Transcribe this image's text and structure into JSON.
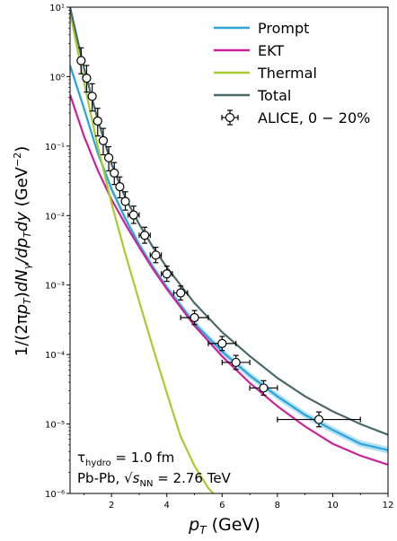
{
  "chart_data": {
    "type": "line",
    "xlabel": "p_T (GeV)",
    "ylabel": "1/(2πp_T)dN_γ/dp_Tdy (GeV⁻²)",
    "xlim": [
      0.5,
      12
    ],
    "ylim": [
      1e-06,
      10
    ],
    "log_y": true,
    "x_ticks": [
      2,
      4,
      6,
      8,
      10,
      12
    ],
    "y_ticks": [
      {
        "value": 1e-06,
        "label": "10⁻⁶"
      },
      {
        "value": 1e-05,
        "label": "10⁻⁵"
      },
      {
        "value": 0.0001,
        "label": "10⁻⁴"
      },
      {
        "value": 0.001,
        "label": "10⁻³"
      },
      {
        "value": 0.01,
        "label": "10⁻²"
      },
      {
        "value": 0.1,
        "label": "10⁻¹"
      },
      {
        "value": 1,
        "label": "10⁰"
      },
      {
        "value": 10,
        "label": "10¹"
      }
    ],
    "grid": false,
    "legend_position": "top-right",
    "series": [
      {
        "name": "Prompt",
        "color": "#2aa6d9",
        "band": true,
        "x": [
          0.5,
          1.0,
          1.5,
          2.0,
          2.5,
          3.0,
          3.5,
          4.0,
          5.0,
          6.0,
          7.0,
          8.0,
          9.0,
          10.0,
          11.0,
          12.0
        ],
        "y": [
          1.45,
          0.35,
          0.08,
          0.024,
          0.009,
          0.0038,
          0.0018,
          0.00092,
          0.00028,
          0.00011,
          5e-05,
          2.5e-05,
          1.35e-05,
          8.2e-06,
          5.2e-06,
          4.2e-06
        ]
      },
      {
        "name": "EKT",
        "color": "#cc2299",
        "x": [
          0.5,
          1.0,
          1.5,
          2.0,
          2.5,
          3.0,
          3.5,
          4.0,
          5.0,
          6.0,
          7.0,
          8.0,
          9.0,
          10.0,
          11.0,
          12.0
        ],
        "y": [
          0.55,
          0.14,
          0.045,
          0.017,
          0.0075,
          0.0035,
          0.0017,
          0.00088,
          0.00026,
          9.4e-05,
          3.9e-05,
          1.8e-05,
          9.2e-06,
          5.2e-06,
          3.5e-06,
          2.6e-06
        ]
      },
      {
        "name": "Thermal",
        "color": "#a8cc30",
        "x": [
          0.5,
          1.0,
          1.5,
          2.0,
          2.5,
          3.0,
          3.5,
          4.0,
          4.5,
          5.0,
          5.5,
          6.0,
          6.3
        ],
        "y": [
          8.5,
          0.85,
          0.1,
          0.015,
          0.0028,
          0.00058,
          0.000125,
          2.8e-05,
          6.6e-06,
          2.5e-06,
          1.2e-06,
          7.2e-07,
          5e-07
        ]
      },
      {
        "name": "Total",
        "color": "#4a6a6a",
        "x": [
          0.5,
          1.0,
          1.5,
          2.0,
          2.5,
          3.0,
          3.5,
          4.0,
          5.0,
          6.0,
          7.0,
          8.0,
          9.0,
          10.0,
          11.0,
          12.0
        ],
        "y": [
          10,
          1.35,
          0.24,
          0.055,
          0.018,
          0.0075,
          0.0035,
          0.0018,
          0.00055,
          0.00021,
          9.5e-05,
          4.6e-05,
          2.5e-05,
          1.52e-05,
          1e-05,
          7e-06
        ]
      }
    ],
    "data_series": {
      "name": "ALICE, 0 − 20%",
      "points": [
        {
          "x": 0.9,
          "y": 1.7,
          "yerr_lo": 0.6,
          "yerr_hi": 0.9,
          "xerr": 0.1
        },
        {
          "x": 1.1,
          "y": 0.95,
          "yerr_lo": 0.35,
          "yerr_hi": 0.5,
          "xerr": 0.1
        },
        {
          "x": 1.3,
          "y": 0.52,
          "yerr_lo": 0.2,
          "yerr_hi": 0.27,
          "xerr": 0.1
        },
        {
          "x": 1.5,
          "y": 0.23,
          "yerr_lo": 0.09,
          "yerr_hi": 0.12,
          "xerr": 0.1
        },
        {
          "x": 1.7,
          "y": 0.12,
          "yerr_lo": 0.045,
          "yerr_hi": 0.06,
          "xerr": 0.1
        },
        {
          "x": 1.9,
          "y": 0.068,
          "yerr_lo": 0.024,
          "yerr_hi": 0.03,
          "xerr": 0.1
        },
        {
          "x": 2.1,
          "y": 0.041,
          "yerr_lo": 0.013,
          "yerr_hi": 0.017,
          "xerr": 0.1
        },
        {
          "x": 2.3,
          "y": 0.026,
          "yerr_lo": 0.008,
          "yerr_hi": 0.01,
          "xerr": 0.1
        },
        {
          "x": 2.5,
          "y": 0.016,
          "yerr_lo": 0.004,
          "yerr_hi": 0.006,
          "xerr": 0.1
        },
        {
          "x": 2.8,
          "y": 0.0102,
          "yerr_lo": 0.0025,
          "yerr_hi": 0.0035,
          "xerr": 0.2
        },
        {
          "x": 3.2,
          "y": 0.0052,
          "yerr_lo": 0.0012,
          "yerr_hi": 0.0016,
          "xerr": 0.2
        },
        {
          "x": 3.6,
          "y": 0.0027,
          "yerr_lo": 0.0006,
          "yerr_hi": 0.0008,
          "xerr": 0.2
        },
        {
          "x": 4.0,
          "y": 0.00145,
          "yerr_lo": 0.00032,
          "yerr_hi": 0.00042,
          "xerr": 0.2
        },
        {
          "x": 4.5,
          "y": 0.00077,
          "yerr_lo": 0.00016,
          "yerr_hi": 0.0002,
          "xerr": 0.25
        },
        {
          "x": 5.0,
          "y": 0.00034,
          "yerr_lo": 7e-05,
          "yerr_hi": 9e-05,
          "xerr": 0.5
        },
        {
          "x": 6.0,
          "y": 0.000144,
          "yerr_lo": 3e-05,
          "yerr_hi": 3.8e-05,
          "xerr": 0.5
        },
        {
          "x": 6.5,
          "y": 7.7e-05,
          "yerr_lo": 1.6e-05,
          "yerr_hi": 2e-05,
          "xerr": 0.5
        },
        {
          "x": 7.5,
          "y": 3.3e-05,
          "yerr_lo": 7e-06,
          "yerr_hi": 9e-06,
          "xerr": 0.5
        },
        {
          "x": 9.5,
          "y": 1.16e-05,
          "yerr_lo": 2.5e-06,
          "yerr_hi": 3.3e-06,
          "xerr": 1.5
        }
      ]
    },
    "annotations": [
      "τ_hydro = 1.0 fm",
      "Pb-Pb, √s_NN = 2.76 TeV"
    ]
  },
  "legend": {
    "items": [
      {
        "label": "Prompt",
        "color": "#2aa6d9"
      },
      {
        "label": "EKT",
        "color": "#cc2299"
      },
      {
        "label": "Thermal",
        "color": "#a8cc30"
      },
      {
        "label": "Total",
        "color": "#4a6a6a"
      }
    ],
    "data_label": "ALICE, 0 − 20%"
  }
}
